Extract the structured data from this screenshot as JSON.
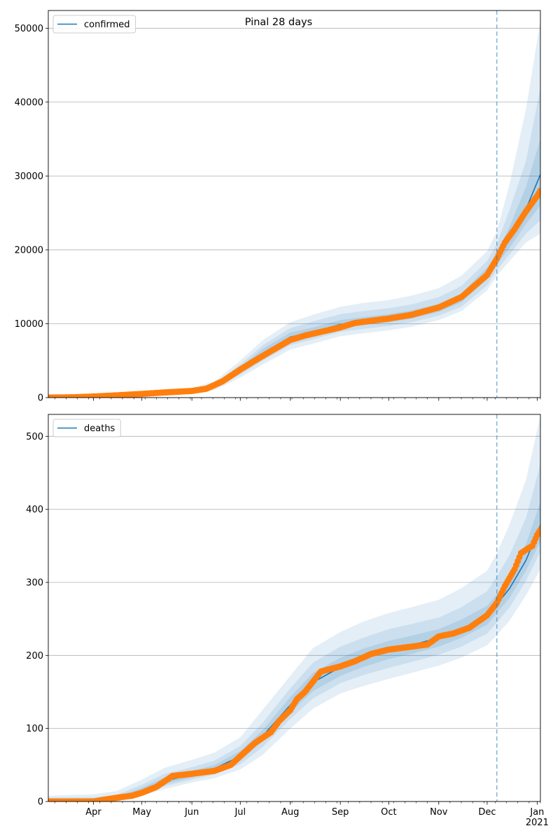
{
  "figure_title": "Pinal 28 days",
  "colors": {
    "model_line": "#1f77b4",
    "observed_points": "#ff7f0e",
    "band": "#1f77b4",
    "forecast_marker": "#1f77b4",
    "grid": "#b0b0b0"
  },
  "chart_data": [
    {
      "type": "line",
      "legend": [
        "confirmed"
      ],
      "legend_position": "top-left",
      "grid": "horizontal",
      "x_range": [
        "2020-03-04",
        "2021-01-03"
      ],
      "ylim": [
        0,
        52400
      ],
      "y_ticks": [
        "0",
        "10000",
        "20000",
        "30000",
        "40000",
        "50000"
      ],
      "x_ticks": [],
      "forecast_start": "2020-12-07",
      "series": [
        {
          "name": "confirmed",
          "kind": "model-median",
          "x": [
            "2020-03-04",
            "2020-04-01",
            "2020-05-01",
            "2020-06-01",
            "2020-06-15",
            "2020-07-01",
            "2020-07-15",
            "2020-08-01",
            "2020-08-15",
            "2020-09-01",
            "2020-09-15",
            "2020-10-01",
            "2020-10-15",
            "2020-11-01",
            "2020-11-15",
            "2020-12-01",
            "2020-12-07",
            "2020-12-15",
            "2020-12-25",
            "2021-01-03"
          ],
          "y": [
            100,
            150,
            400,
            900,
            1500,
            3800,
            6000,
            8200,
            8900,
            9900,
            10300,
            10700,
            11200,
            12100,
            13500,
            16800,
            18800,
            21500,
            25500,
            30200
          ]
        },
        {
          "name": "observed",
          "kind": "points",
          "x": [
            "2020-03-04",
            "2020-03-20",
            "2020-04-01",
            "2020-04-15",
            "2020-05-01",
            "2020-05-15",
            "2020-06-01",
            "2020-06-10",
            "2020-06-20",
            "2020-07-01",
            "2020-07-10",
            "2020-07-20",
            "2020-08-01",
            "2020-08-10",
            "2020-08-20",
            "2020-09-01",
            "2020-09-10",
            "2020-09-20",
            "2020-10-01",
            "2020-10-15",
            "2020-11-01",
            "2020-11-15",
            "2020-12-01",
            "2020-12-07",
            "2020-12-12",
            "2020-12-18",
            "2020-12-25",
            "2021-01-01",
            "2021-01-03"
          ],
          "y": [
            0,
            50,
            150,
            300,
            500,
            700,
            900,
            1200,
            2200,
            3800,
            5000,
            6300,
            7800,
            8400,
            8900,
            9500,
            10100,
            10400,
            10700,
            11200,
            12200,
            13600,
            16600,
            18800,
            21000,
            22800,
            25200,
            27300,
            28000
          ]
        }
      ],
      "bands": [
        {
          "x": [
            "2020-03-04",
            "2020-04-01",
            "2020-05-01",
            "2020-06-01",
            "2020-06-15",
            "2020-07-01",
            "2020-07-15",
            "2020-08-01",
            "2020-08-15",
            "2020-09-01",
            "2020-09-15",
            "2020-10-01",
            "2020-10-15",
            "2020-11-01",
            "2020-11-15",
            "2020-12-01",
            "2020-12-07",
            "2020-12-15",
            "2020-12-25",
            "2021-01-03"
          ],
          "lower": [
            0,
            80,
            250,
            600,
            1000,
            2700,
            4500,
            6500,
            7300,
            8300,
            8700,
            9100,
            9600,
            10500,
            11700,
            14500,
            16500,
            18500,
            21000,
            22200
          ],
          "upper": [
            200,
            300,
            650,
            1300,
            2200,
            5000,
            7800,
            10200,
            11200,
            12300,
            12800,
            13200,
            13800,
            14800,
            16500,
            19800,
            22500,
            29000,
            39000,
            51000
          ]
        },
        {
          "x": [
            "2020-03-04",
            "2020-04-01",
            "2020-05-01",
            "2020-06-01",
            "2020-06-15",
            "2020-07-01",
            "2020-07-15",
            "2020-08-01",
            "2020-08-15",
            "2020-09-01",
            "2020-09-15",
            "2020-10-01",
            "2020-10-15",
            "2020-11-01",
            "2020-11-15",
            "2020-12-01",
            "2020-12-07",
            "2020-12-15",
            "2020-12-25",
            "2021-01-03"
          ],
          "lower": [
            20,
            100,
            300,
            700,
            1200,
            3100,
            5000,
            7100,
            7900,
            8900,
            9300,
            9700,
            10200,
            11100,
            12300,
            15200,
            17300,
            19400,
            22200,
            24000
          ],
          "upper": [
            160,
            240,
            540,
            1120,
            1900,
            4500,
            7100,
            9400,
            10300,
            11300,
            11700,
            12100,
            12600,
            13600,
            15100,
            18500,
            20800,
            25500,
            32000,
            42000
          ]
        },
        {
          "x": [
            "2020-03-04",
            "2020-04-01",
            "2020-05-01",
            "2020-06-01",
            "2020-06-15",
            "2020-07-01",
            "2020-07-15",
            "2020-08-01",
            "2020-08-15",
            "2020-09-01",
            "2020-09-15",
            "2020-10-01",
            "2020-10-15",
            "2020-11-01",
            "2020-11-15",
            "2020-12-01",
            "2020-12-07",
            "2020-12-15",
            "2020-12-25",
            "2021-01-03"
          ],
          "lower": [
            50,
            120,
            350,
            780,
            1350,
            3400,
            5400,
            7600,
            8400,
            9400,
            9800,
            10200,
            10700,
            11600,
            12900,
            16000,
            18000,
            20300,
            23500,
            26000
          ],
          "upper": [
            130,
            200,
            470,
            1030,
            1700,
            4200,
            6600,
            8800,
            9500,
            10500,
            10900,
            11300,
            11800,
            12700,
            14100,
            17600,
            19600,
            23200,
            28500,
            35000
          ]
        }
      ]
    },
    {
      "type": "line",
      "legend": [
        "deaths"
      ],
      "legend_position": "top-left",
      "grid": "horizontal",
      "x_range": [
        "2020-03-04",
        "2021-01-03"
      ],
      "ylim": [
        0,
        530
      ],
      "y_ticks": [
        "0",
        "100",
        "200",
        "300",
        "400",
        "500"
      ],
      "x_ticks": [
        "Apr",
        "May",
        "Jun",
        "Jul",
        "Aug",
        "Sep",
        "Oct",
        "Nov",
        "Dec",
        "Jan\n2021"
      ],
      "forecast_start": "2020-12-07",
      "series": [
        {
          "name": "deaths",
          "kind": "model-median",
          "x": [
            "2020-03-04",
            "2020-04-01",
            "2020-04-15",
            "2020-05-01",
            "2020-05-15",
            "2020-06-01",
            "2020-06-15",
            "2020-07-01",
            "2020-07-15",
            "2020-08-01",
            "2020-08-15",
            "2020-09-01",
            "2020-09-15",
            "2020-10-01",
            "2020-10-15",
            "2020-11-01",
            "2020-11-15",
            "2020-12-01",
            "2020-12-07",
            "2020-12-15",
            "2020-12-25",
            "2021-01-03"
          ],
          "y": [
            0,
            1,
            4,
            15,
            28,
            37,
            45,
            62,
            90,
            132,
            163,
            184,
            196,
            207,
            214,
            224,
            236,
            255,
            270,
            292,
            330,
            378
          ]
        },
        {
          "name": "observed",
          "kind": "points",
          "x": [
            "2020-03-04",
            "2020-03-20",
            "2020-04-01",
            "2020-04-15",
            "2020-04-25",
            "2020-05-01",
            "2020-05-10",
            "2020-05-20",
            "2020-06-01",
            "2020-06-15",
            "2020-06-25",
            "2020-07-01",
            "2020-07-10",
            "2020-07-20",
            "2020-07-25",
            "2020-08-01",
            "2020-08-05",
            "2020-08-10",
            "2020-08-20",
            "2020-09-01",
            "2020-09-10",
            "2020-09-20",
            "2020-10-01",
            "2020-10-15",
            "2020-10-25",
            "2020-11-01",
            "2020-11-10",
            "2020-11-20",
            "2020-12-01",
            "2020-12-07",
            "2020-12-12",
            "2020-12-18",
            "2020-12-22",
            "2020-12-26",
            "2020-12-29",
            "2021-01-01",
            "2021-01-03"
          ],
          "y": [
            0,
            0,
            0,
            5,
            8,
            12,
            20,
            35,
            38,
            42,
            50,
            62,
            80,
            95,
            110,
            125,
            140,
            150,
            178,
            185,
            192,
            202,
            208,
            212,
            215,
            226,
            230,
            238,
            255,
            272,
            295,
            318,
            340,
            346,
            350,
            365,
            372
          ]
        }
      ],
      "bands": [
        {
          "x": [
            "2020-03-04",
            "2020-04-01",
            "2020-04-15",
            "2020-05-01",
            "2020-05-15",
            "2020-06-01",
            "2020-06-15",
            "2020-07-01",
            "2020-07-15",
            "2020-08-01",
            "2020-08-15",
            "2020-09-01",
            "2020-09-15",
            "2020-10-01",
            "2020-10-15",
            "2020-11-01",
            "2020-11-15",
            "2020-12-01",
            "2020-12-07",
            "2020-12-15",
            "2020-12-25",
            "2021-01-03"
          ],
          "lower": [
            0,
            0,
            1,
            8,
            17,
            26,
            32,
            44,
            64,
            100,
            127,
            148,
            158,
            168,
            176,
            186,
            197,
            214,
            228,
            248,
            282,
            318
          ],
          "upper": [
            8,
            10,
            14,
            30,
            46,
            57,
            67,
            88,
            126,
            172,
            210,
            232,
            246,
            258,
            266,
            276,
            292,
            316,
            340,
            380,
            440,
            528
          ]
        },
        {
          "x": [
            "2020-03-04",
            "2020-04-01",
            "2020-04-15",
            "2020-05-01",
            "2020-05-15",
            "2020-06-01",
            "2020-06-15",
            "2020-07-01",
            "2020-07-15",
            "2020-08-01",
            "2020-08-15",
            "2020-09-01",
            "2020-09-15",
            "2020-10-01",
            "2020-10-15",
            "2020-11-01",
            "2020-11-15",
            "2020-12-01",
            "2020-12-07",
            "2020-12-15",
            "2020-12-25",
            "2021-01-03"
          ],
          "lower": [
            0,
            0,
            2,
            10,
            21,
            30,
            37,
            51,
            75,
            113,
            141,
            162,
            173,
            183,
            191,
            201,
            212,
            230,
            245,
            266,
            302,
            342
          ],
          "upper": [
            5,
            6,
            9,
            23,
            38,
            47,
            56,
            76,
            108,
            155,
            190,
            212,
            224,
            236,
            243,
            252,
            266,
            288,
            308,
            338,
            388,
            462
          ]
        },
        {
          "x": [
            "2020-03-04",
            "2020-04-01",
            "2020-04-15",
            "2020-05-01",
            "2020-05-15",
            "2020-06-01",
            "2020-06-15",
            "2020-07-01",
            "2020-07-15",
            "2020-08-01",
            "2020-08-15",
            "2020-09-01",
            "2020-09-15",
            "2020-10-01",
            "2020-10-15",
            "2020-11-01",
            "2020-11-15",
            "2020-12-01",
            "2020-12-07",
            "2020-12-15",
            "2020-12-25",
            "2021-01-03"
          ],
          "lower": [
            0,
            0,
            3,
            12,
            24,
            33,
            41,
            56,
            83,
            122,
            151,
            172,
            184,
            195,
            202,
            212,
            224,
            242,
            258,
            279,
            316,
            356
          ],
          "upper": [
            3,
            4,
            6,
            19,
            33,
            42,
            50,
            69,
            98,
            143,
            176,
            197,
            209,
            220,
            227,
            236,
            249,
            268,
            284,
            308,
            352,
            410
          ]
        }
      ]
    }
  ]
}
